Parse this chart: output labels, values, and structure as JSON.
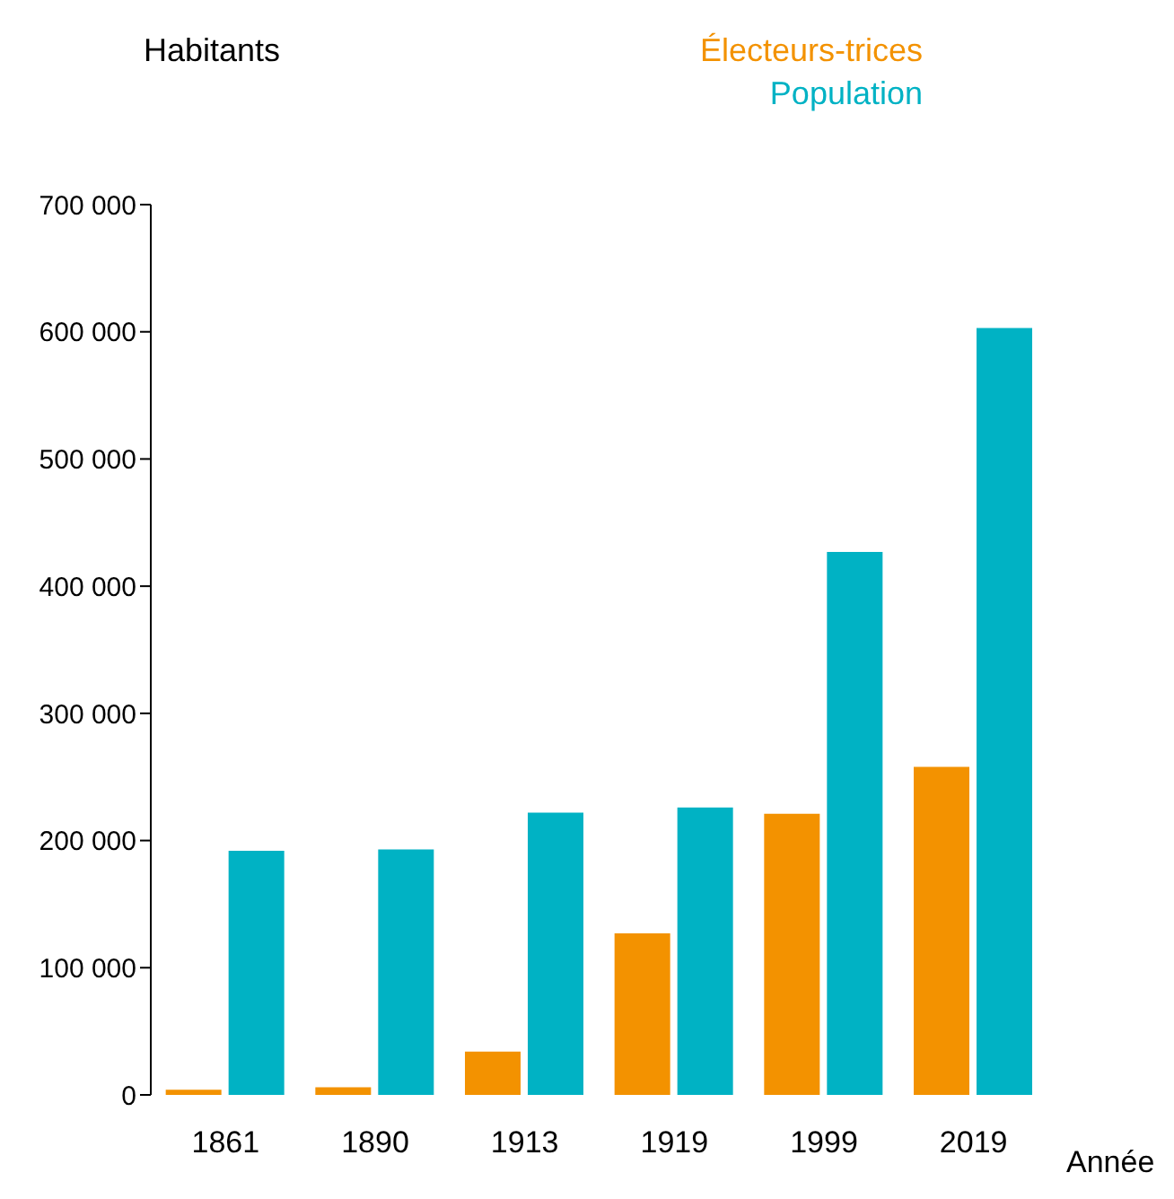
{
  "chart_data": {
    "type": "bar",
    "ylabel": "Habitants",
    "xlabel": "Année",
    "categories": [
      "1861",
      "1890",
      "1913",
      "1919",
      "1999",
      "2019"
    ],
    "series": [
      {
        "name": "Électeurs-trices",
        "color": "#f39200",
        "values": [
          4000,
          6000,
          34000,
          127000,
          221000,
          258000
        ]
      },
      {
        "name": "Population",
        "color": "#00b2c4",
        "values": [
          192000,
          193000,
          222000,
          226000,
          427000,
          603000
        ]
      }
    ],
    "ylim": [
      0,
      700000
    ],
    "yticks": [
      {
        "value": 0,
        "label": "0"
      },
      {
        "value": 100000,
        "label": "100 000"
      },
      {
        "value": 200000,
        "label": "200 000"
      },
      {
        "value": 300000,
        "label": "300 000"
      },
      {
        "value": 400000,
        "label": "400 000"
      },
      {
        "value": 500000,
        "label": "500 000"
      },
      {
        "value": 600000,
        "label": "600 000"
      },
      {
        "value": 700000,
        "label": "700 000"
      }
    ],
    "grid": false,
    "legend": "top right"
  }
}
